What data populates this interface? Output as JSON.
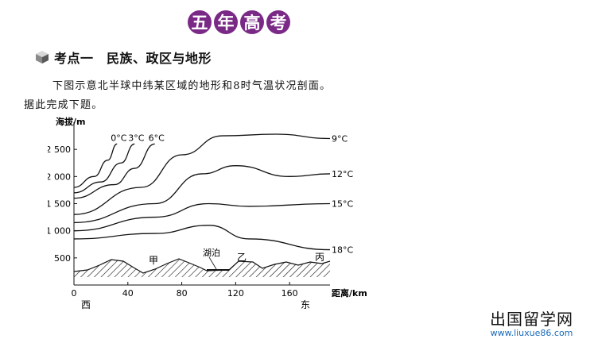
{
  "banner": {
    "chars": [
      "五",
      "年",
      "高",
      "考"
    ]
  },
  "section": {
    "title": "考点一　民族、政区与地形"
  },
  "question": {
    "line1": "下图示意北半球中纬某区域的地形和8时气温状况剖面。",
    "line2": "据此完成下题。"
  },
  "figure": {
    "y_axis_label": "海拔/m",
    "x_axis_label": "距离/km",
    "west_label": "西",
    "east_label": "东",
    "y_ticks": [
      "500",
      "1 000",
      "1 500",
      "2 000",
      "2 500"
    ],
    "x_ticks": [
      "0",
      "40",
      "80",
      "120",
      "160"
    ],
    "isotherm_labels": [
      "0°C",
      "3°C",
      "6°C",
      "9°C",
      "12°C",
      "15°C",
      "18°C"
    ],
    "terrain_labels": {
      "jia": "甲",
      "lake": "湖泊",
      "yi": "乙",
      "bing": "丙"
    }
  },
  "chart_data": {
    "type": "line",
    "title": "",
    "xlabel": "距离/km",
    "ylabel": "海拔/m",
    "xlim": [
      0,
      190
    ],
    "ylim": [
      0,
      3000
    ],
    "series": [
      {
        "name": "0°C",
        "x": [
          0,
          15,
          25,
          32
        ],
        "y": [
          1800,
          2000,
          2300,
          2600
        ]
      },
      {
        "name": "3°C",
        "x": [
          0,
          20,
          35,
          45
        ],
        "y": [
          1700,
          1900,
          2250,
          2600
        ]
      },
      {
        "name": "6°C",
        "x": [
          0,
          30,
          45,
          60
        ],
        "y": [
          1600,
          1850,
          2150,
          2600
        ]
      },
      {
        "name": "9°C",
        "x": [
          0,
          50,
          80,
          110,
          150,
          190
        ],
        "y": [
          1300,
          1800,
          2400,
          2750,
          2780,
          2700
        ]
      },
      {
        "name": "12°C",
        "x": [
          0,
          60,
          95,
          120,
          160,
          190
        ],
        "y": [
          1150,
          1500,
          2050,
          2200,
          2000,
          2050
        ]
      },
      {
        "name": "15°C",
        "x": [
          0,
          60,
          100,
          130,
          190
        ],
        "y": [
          1000,
          1250,
          1500,
          1450,
          1500
        ]
      },
      {
        "name": "18°C",
        "x": [
          0,
          60,
          100,
          130,
          190
        ],
        "y": [
          850,
          950,
          1100,
          850,
          650
        ]
      }
    ]
  },
  "watermark": {
    "main": "出国留学网",
    "url": "www.liuxue86.com"
  }
}
